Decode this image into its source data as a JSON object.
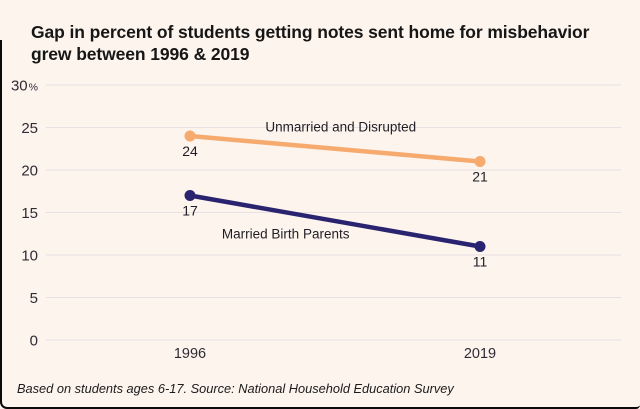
{
  "card": {
    "title": "Gap in percent of students getting notes sent home for misbehavior\ngrew between 1996 & 2019",
    "footnote": "Based on students ages 6-17. Source: National Household Education Survey"
  },
  "colors": {
    "background": "#FDF4ED",
    "frame": "#0A0A0A",
    "gridline": "#E7E1E4",
    "axis_text": "#2E2B35",
    "label_text": "#1F1D26"
  },
  "chart_data": {
    "type": "line",
    "title": "Gap in percent of students getting notes sent home for misbehavior grew between 1996 & 2019",
    "x_categories": [
      "1996",
      "2019"
    ],
    "series": [
      {
        "name": "Unmarried and Disrupted",
        "values": [
          24,
          21
        ],
        "color": "#F6AA6E",
        "label_hint": {
          "fx": 0.52,
          "dy": -18
        }
      },
      {
        "name": "Married Birth Parents",
        "values": [
          17,
          11
        ],
        "color": "#2A2470",
        "label_hint": {
          "fx": 0.33,
          "dy": 26
        }
      }
    ],
    "ylim": [
      0,
      30
    ],
    "y_tick_step": 5,
    "y_unit_suffix": "%",
    "grid": true,
    "show_point_labels": true,
    "legend_position": "inline-labels",
    "xlabel": "",
    "ylabel": ""
  }
}
